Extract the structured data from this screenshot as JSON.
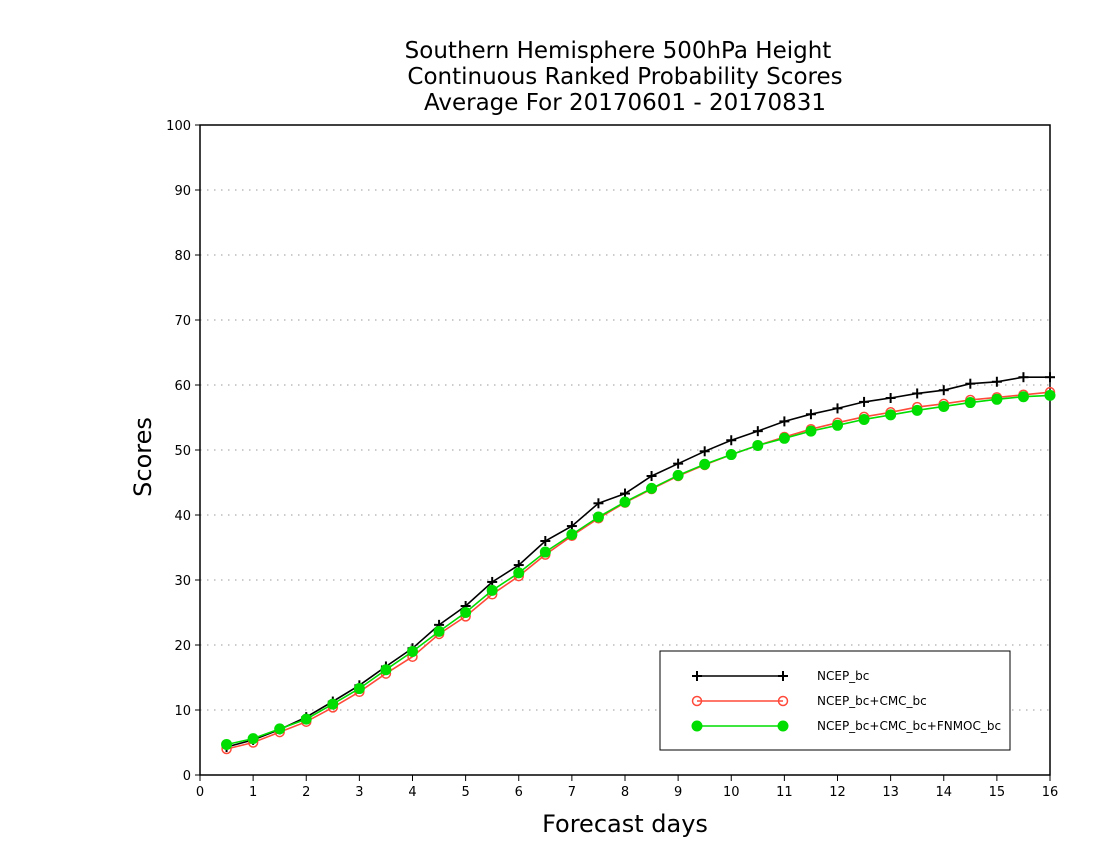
{
  "chart_data": {
    "type": "line",
    "title": [
      "Southern Hemisphere 500hPa Height",
      "Continuous Ranked Probability Scores",
      "Average For 20170601 - 20170831"
    ],
    "xlabel": "Forecast days",
    "ylabel": "Scores",
    "xlim": [
      0,
      16
    ],
    "ylim": [
      0,
      100
    ],
    "xticks": [
      "0",
      "1",
      "2",
      "3",
      "4",
      "5",
      "6",
      "7",
      "8",
      "9",
      "10",
      "11",
      "12",
      "13",
      "14",
      "15",
      "16"
    ],
    "yticks": [
      "0",
      "10",
      "20",
      "30",
      "40",
      "50",
      "60",
      "70",
      "80",
      "90",
      "100"
    ],
    "grid": "horizontal dotted",
    "legend_position": "bottom-right",
    "x": [
      0.5,
      1,
      1.5,
      2,
      2.5,
      3,
      3.5,
      4,
      4.5,
      5,
      5.5,
      6,
      6.5,
      7,
      7.5,
      8,
      8.5,
      9,
      9.5,
      10,
      10.5,
      11,
      11.5,
      12,
      12.5,
      13,
      13.5,
      14,
      14.5,
      15,
      15.5,
      16
    ],
    "series": [
      {
        "name": "NCEP_bc",
        "color": "#000000",
        "marker": "plus",
        "values": [
          4.3,
          5.4,
          7.0,
          8.9,
          11.3,
          13.8,
          16.7,
          19.5,
          23.1,
          26.0,
          29.7,
          32.3,
          36.0,
          38.3,
          41.8,
          43.3,
          46.0,
          47.9,
          49.8,
          51.5,
          52.9,
          54.4,
          55.5,
          56.4,
          57.4,
          58.0,
          58.7,
          59.2,
          60.2,
          60.5,
          61.2,
          61.2
        ]
      },
      {
        "name": "NCEP_bc+CMC_bc",
        "color": "#ff4a3a",
        "marker": "open-circle",
        "values": [
          4.0,
          5.0,
          6.6,
          8.2,
          10.4,
          12.8,
          15.6,
          18.2,
          21.7,
          24.4,
          27.8,
          30.6,
          33.9,
          36.8,
          39.5,
          41.9,
          44.0,
          46.0,
          47.7,
          49.3,
          50.7,
          52.0,
          53.2,
          54.2,
          55.1,
          55.8,
          56.6,
          57.1,
          57.7,
          58.1,
          58.5,
          58.9
        ]
      },
      {
        "name": "NCEP_bc+CMC_bc+FNMOC_bc",
        "color": "#00dd00",
        "marker": "filled-circle",
        "values": [
          4.7,
          5.6,
          7.1,
          8.6,
          10.9,
          13.3,
          16.2,
          19.0,
          22.1,
          25.0,
          28.4,
          31.1,
          34.3,
          37.0,
          39.7,
          42.0,
          44.1,
          46.1,
          47.8,
          49.3,
          50.7,
          51.8,
          52.9,
          53.8,
          54.7,
          55.4,
          56.1,
          56.7,
          57.3,
          57.8,
          58.2,
          58.4
        ]
      }
    ]
  }
}
